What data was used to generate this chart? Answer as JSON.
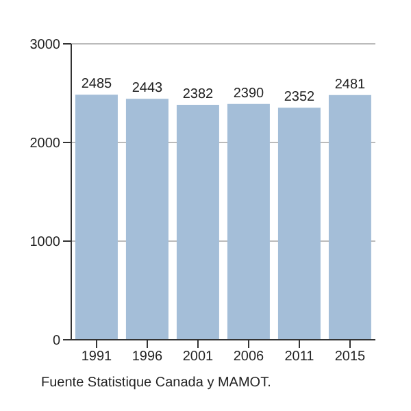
{
  "chart_data": {
    "type": "bar",
    "categories": [
      "1991",
      "1996",
      "2001",
      "2006",
      "2011",
      "2015"
    ],
    "values": [
      2485,
      2443,
      2382,
      2390,
      2352,
      2481
    ],
    "color": "#a4bed8",
    "ylim": [
      0,
      3000
    ],
    "yticks": [
      0,
      1000,
      2000,
      3000
    ],
    "grid": "y",
    "data_labels": true,
    "annotations": [
      "Fuente Statistique Canada y MAMOT."
    ]
  }
}
